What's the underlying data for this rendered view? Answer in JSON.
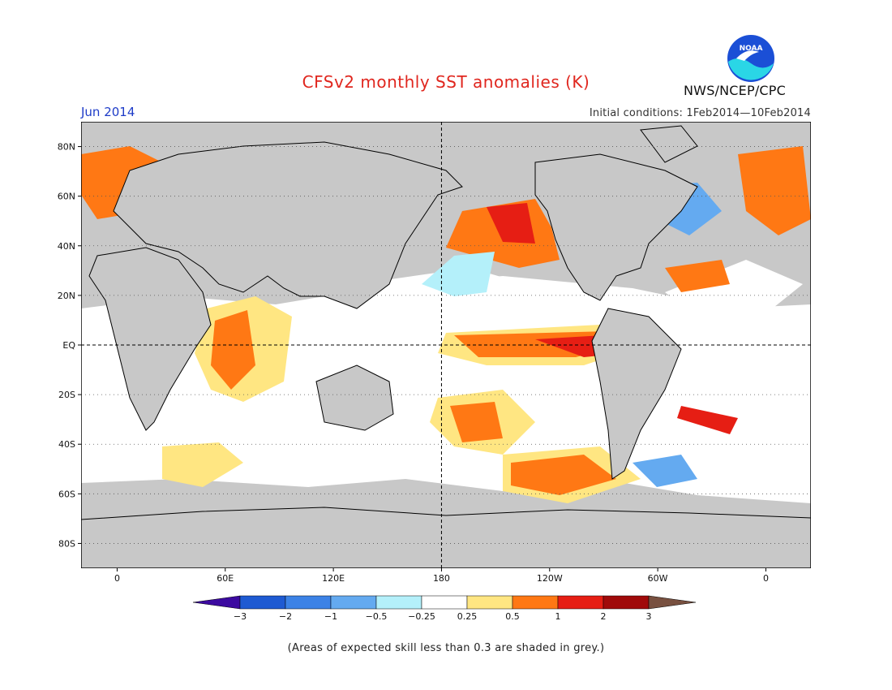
{
  "header": {
    "title": "CFSv2 monthly SST anomalies (K)",
    "period": "Jun 2014",
    "initial_conditions": "Initial conditions: 1Feb2014—10Feb2014",
    "agency": "NWS/NCEP/CPC",
    "logo_text": "NOAA"
  },
  "axes": {
    "lat_labels": [
      "80N",
      "60N",
      "40N",
      "20N",
      "EQ",
      "20S",
      "40S",
      "60S",
      "80S"
    ],
    "lat_values": [
      80,
      60,
      40,
      20,
      0,
      -20,
      -40,
      -60,
      -80
    ],
    "lon_labels": [
      "0",
      "60E",
      "120E",
      "180",
      "120W",
      "60W",
      "0"
    ],
    "lon_values": [
      0,
      60,
      120,
      180,
      240,
      300,
      360
    ],
    "lon_range": [
      -20,
      385
    ],
    "lat_range": [
      -90,
      90
    ]
  },
  "legend": {
    "tick_labels": [
      "−3",
      "−2",
      "−1",
      "−0.5",
      "−0.25",
      "0.25",
      "0.5",
      "1",
      "2",
      "3"
    ],
    "colors": [
      "#3c0aa0",
      "#1e5ad2",
      "#3c82e6",
      "#64aaf0",
      "#b4f0fa",
      "#ffffff",
      "#ffe682",
      "#ff7814",
      "#e61e14",
      "#a00a0a",
      "#785040"
    ]
  },
  "map_colors": {
    "land_mask": "#c8c8c8",
    "ocean_neutral": "#ffffff",
    "coast": "#000000"
  },
  "footnote": "(Areas of expected skill less than 0.3 are shaded in grey.)"
}
